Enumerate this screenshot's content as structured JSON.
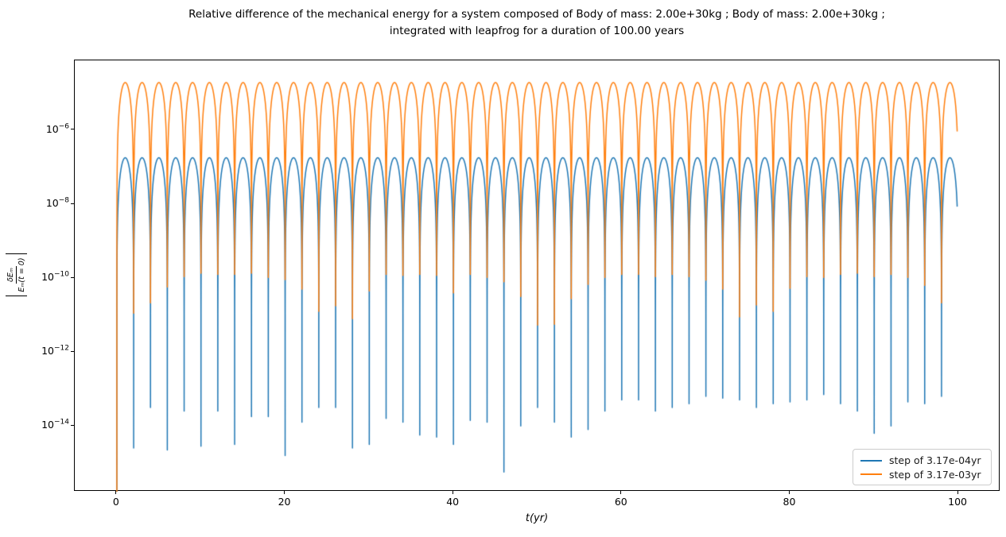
{
  "title": {
    "line1": "Relative difference of the mechanical energy for a system composed of Body of mass: 2.00e+30kg ; Body of mass: 2.00e+30kg ;",
    "line2": "integrated with leapfrog for a duration of 100.00 years"
  },
  "ylabel": {
    "numerator": "δEₘ",
    "denominator": "Eₘ(t = 0)"
  },
  "axes": {
    "xlabel": "t(yr)"
  },
  "chart_data": {
    "type": "line",
    "title": "Relative difference of the mechanical energy for a system composed of Body of mass: 2.00e+30kg ; Body of mass: 2.00e+30kg ; integrated with leapfrog for a duration of 100.00 years",
    "xlabel": "t(yr)",
    "ylabel": "|δEₘ / Eₘ(t = 0)|",
    "x_axis": {
      "range": [
        -5,
        105
      ],
      "ticks": [
        0,
        20,
        40,
        60,
        80,
        100
      ],
      "grid": false
    },
    "y_axis": {
      "scale": "log",
      "range_log10": [
        -15.78,
        -4.11
      ],
      "ticks_log10": [
        -6,
        -8,
        -10,
        -12,
        -14
      ]
    },
    "legend_position": "lower right",
    "period_years": 2,
    "duration_years": 100,
    "t_plot_end": 99.86,
    "dip_times": "t = 2k years, k = 1..49; error is zero at t = 0 (spike clipped at plot bottom)",
    "model": "v(t) = peak * sin^2(pi*t/period) + 10^dips_log10[k] near each dip",
    "series": [
      {
        "name": "step of 3.17e-04yr",
        "color": "#1f77b4",
        "peak": 1.8e-07,
        "dips_log10": [
          -14.6,
          -13.5,
          -14.65,
          -13.6,
          -14.55,
          -13.6,
          -14.5,
          -13.75,
          -13.75,
          -14.8,
          -13.9,
          -13.5,
          -13.5,
          -14.6,
          -14.5,
          -13.8,
          -13.9,
          -14.25,
          -14.3,
          -14.5,
          -13.85,
          -13.9,
          -15.25,
          -14.0,
          -13.5,
          -13.9,
          -14.3,
          -14.1,
          -13.6,
          -13.3,
          -13.3,
          -13.6,
          -13.5,
          -13.4,
          -13.2,
          -13.25,
          -13.3,
          -13.5,
          -13.4,
          -13.35,
          -13.3,
          -13.15,
          -13.4,
          -13.6,
          -14.2,
          -14.0,
          -13.35,
          -13.4,
          -13.2
        ]
      },
      {
        "name": "step of 3.17e-03yr",
        "color": "#ff7f0e",
        "peak": 1.95e-05,
        "dips_log10": [
          -10.95,
          -10.67,
          -10.24,
          -9.96,
          -9.87,
          -9.9,
          -9.9,
          -9.87,
          -9.98,
          -10.04,
          -10.3,
          -10.9,
          -10.75,
          -11.1,
          -10.35,
          -9.9,
          -9.93,
          -9.9,
          -9.93,
          -10.4,
          -9.9,
          -9.98,
          -10.1,
          -10.5,
          -11.27,
          -11.25,
          -10.56,
          -10.17,
          -9.98,
          -9.9,
          -9.9,
          -9.96,
          -9.9,
          -9.96,
          -10.06,
          -10.3,
          -11.05,
          -10.73,
          -10.9,
          -10.28,
          -9.96,
          -9.98,
          -9.9,
          -9.87,
          -9.96,
          -9.9,
          -9.98,
          -10.2,
          -10.67
        ]
      }
    ]
  }
}
